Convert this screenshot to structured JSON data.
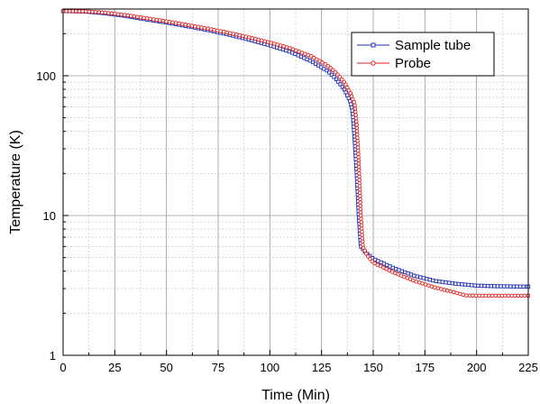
{
  "chart_data": {
    "type": "scatter",
    "xlabel": "Time (Min)",
    "ylabel": "Temperature (K)",
    "xlim": [
      0,
      225
    ],
    "ylim": [
      1,
      300
    ],
    "y_scale": "log",
    "x_ticks": [
      "0",
      "25",
      "50",
      "75",
      "100",
      "125",
      "150",
      "175",
      "200",
      "225"
    ],
    "y_ticks": [
      "1",
      "10",
      "100"
    ],
    "grid": true,
    "legend_position": "top-right",
    "series": [
      {
        "name": "Sample tube",
        "color": "#1f2fb0",
        "marker": "square",
        "points": [
          [
            0,
            290
          ],
          [
            10,
            288
          ],
          [
            20,
            280
          ],
          [
            30,
            268
          ],
          [
            40,
            253
          ],
          [
            50,
            240
          ],
          [
            60,
            226
          ],
          [
            70,
            212
          ],
          [
            80,
            197
          ],
          [
            90,
            181
          ],
          [
            100,
            165
          ],
          [
            110,
            148
          ],
          [
            120,
            127
          ],
          [
            128,
            108
          ],
          [
            132,
            95
          ],
          [
            136,
            80
          ],
          [
            139,
            65
          ],
          [
            140,
            55
          ],
          [
            141,
            35
          ],
          [
            142,
            20
          ],
          [
            143,
            10
          ],
          [
            144,
            6
          ],
          [
            146,
            5.5
          ],
          [
            150,
            4.9
          ],
          [
            160,
            4.2
          ],
          [
            170,
            3.7
          ],
          [
            180,
            3.4
          ],
          [
            190,
            3.25
          ],
          [
            200,
            3.15
          ],
          [
            210,
            3.12
          ],
          [
            225,
            3.1
          ]
        ]
      },
      {
        "name": "Probe",
        "color": "#e02020",
        "marker": "circle",
        "points": [
          [
            0,
            290
          ],
          [
            10,
            289
          ],
          [
            20,
            283
          ],
          [
            30,
            272
          ],
          [
            40,
            258
          ],
          [
            50,
            245
          ],
          [
            60,
            231
          ],
          [
            70,
            217
          ],
          [
            80,
            203
          ],
          [
            90,
            188
          ],
          [
            100,
            173
          ],
          [
            110,
            157
          ],
          [
            120,
            138
          ],
          [
            128,
            118
          ],
          [
            132,
            105
          ],
          [
            136,
            90
          ],
          [
            139,
            75
          ],
          [
            141,
            63
          ],
          [
            142,
            45
          ],
          [
            143,
            24
          ],
          [
            144,
            10
          ],
          [
            145,
            6
          ],
          [
            147,
            5.2
          ],
          [
            150,
            4.6
          ],
          [
            160,
            3.9
          ],
          [
            170,
            3.4
          ],
          [
            180,
            3.05
          ],
          [
            190,
            2.8
          ],
          [
            195,
            2.68
          ],
          [
            200,
            2.67
          ],
          [
            225,
            2.67
          ]
        ]
      }
    ]
  }
}
